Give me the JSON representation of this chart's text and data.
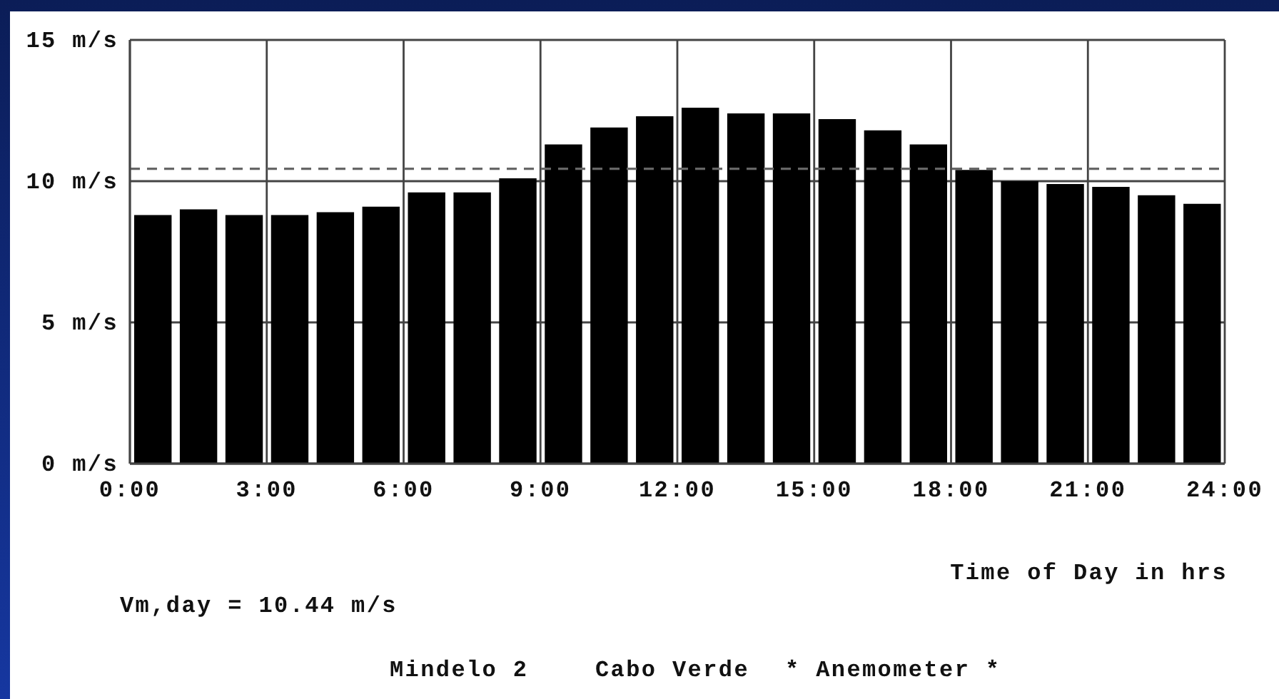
{
  "chart_data": {
    "type": "bar",
    "xlabel": "Time of Day in hrs",
    "x": [
      0.5,
      1.5,
      2.5,
      3.5,
      4.5,
      5.5,
      6.5,
      7.5,
      8.5,
      9.5,
      10.5,
      11.5,
      12.5,
      13.5,
      14.5,
      15.5,
      16.5,
      17.5,
      18.5,
      19.5,
      20.5,
      21.5,
      22.5,
      23.5
    ],
    "values": [
      8.8,
      9.0,
      8.8,
      8.8,
      8.9,
      9.1,
      9.6,
      9.6,
      10.1,
      11.3,
      11.9,
      12.3,
      12.6,
      12.4,
      12.4,
      12.2,
      11.8,
      11.3,
      10.4,
      10.0,
      9.9,
      9.8,
      9.5,
      9.2
    ],
    "color": "#000000",
    "xlim": [
      0,
      24
    ],
    "xticks": [
      {
        "value": 0,
        "label": "0:00"
      },
      {
        "value": 3,
        "label": "3:00"
      },
      {
        "value": 6,
        "label": "6:00"
      },
      {
        "value": 9,
        "label": "9:00"
      },
      {
        "value": 12,
        "label": "12:00"
      },
      {
        "value": 15,
        "label": "15:00"
      },
      {
        "value": 18,
        "label": "18:00"
      },
      {
        "value": 21,
        "label": "21:00"
      },
      {
        "value": 24,
        "label": "24:00"
      }
    ],
    "ylim": [
      0,
      15
    ],
    "yticks": [
      {
        "value": 0,
        "label": "0 m/s"
      },
      {
        "value": 5,
        "label": "5 m/s"
      },
      {
        "value": 10,
        "label": "10 m/s"
      },
      {
        "value": 15,
        "label": "15 m/s"
      }
    ],
    "grid": true,
    "ref_lines": [
      {
        "axis": "y",
        "value": 10.44,
        "line_style": "dashed",
        "color": "#666666"
      }
    ],
    "annotations": [
      "Vm,day = 10.44 m/s",
      "Mindelo 2",
      "Cabo Verde",
      "* Anemometer *"
    ]
  }
}
